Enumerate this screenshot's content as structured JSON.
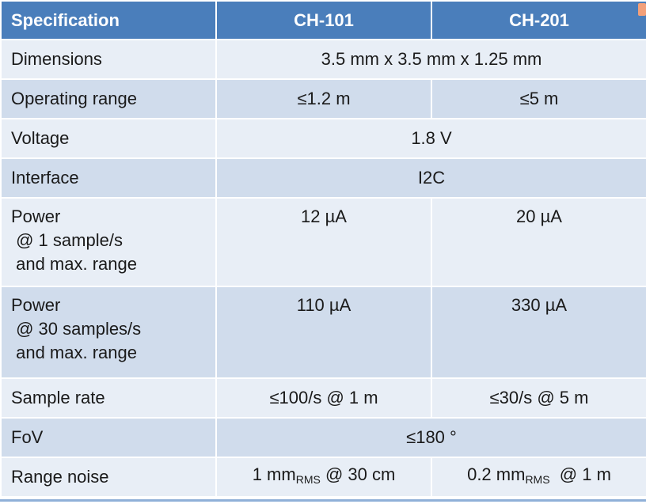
{
  "table": {
    "headers": [
      "Specification",
      "CH-101",
      "CH-201"
    ],
    "rows": {
      "dimensions": {
        "label": "Dimensions",
        "value": "3.5 mm x 3.5 mm x 1.25 mm"
      },
      "operating_range": {
        "label": "Operating range",
        "ch101": "≤1.2 m",
        "ch201": "≤5 m"
      },
      "voltage": {
        "label": "Voltage",
        "value": "1.8 V"
      },
      "interface": {
        "label": "Interface",
        "value": "I2C"
      },
      "power_1": {
        "label_lines": [
          "Power",
          " @ 1 sample/s",
          " and max. range"
        ],
        "ch101": "12 µA",
        "ch201": "20 µA"
      },
      "power_30": {
        "label_lines": [
          "Power",
          " @ 30 samples/s",
          " and max. range"
        ],
        "ch101": "110 µA",
        "ch201": "330 µA"
      },
      "sample_rate": {
        "label": "Sample rate",
        "ch101": "≤100/s @ 1 m",
        "ch201": "≤30/s @ 5 m"
      },
      "fov": {
        "label": "FoV",
        "value": "≤180 °"
      },
      "range_noise": {
        "label": "Range noise",
        "ch101": {
          "pre": "1 mm",
          "sub": "RMS",
          "post": " @ 30 cm"
        },
        "ch201": {
          "pre": "0.2 mm",
          "sub": "RMS",
          "post": "  @ 1 m"
        }
      }
    }
  },
  "colors": {
    "header_bg": "#4a7ebb",
    "row_dark": "#d0dcec",
    "row_light": "#e8eef6",
    "accent_bottom": "#8fb0d8"
  }
}
